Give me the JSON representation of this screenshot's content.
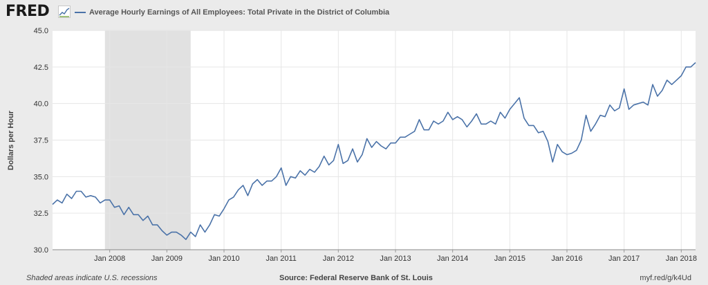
{
  "header": {
    "logo_text": "FRED",
    "legend_label": "Average Hourly Earnings of All Employees: Total Private in the District of Columbia"
  },
  "footer": {
    "left": "Shaded areas indicate U.S. recessions",
    "source": "Source: Federal Reserve Bank of St. Louis",
    "url": "myf.red/g/k4Ud"
  },
  "colors": {
    "line": "#4a72a8",
    "recession": "#e1e1e1",
    "plot_bg": "#ffffff",
    "grid": "#e6e6e6"
  },
  "chart_data": {
    "type": "line",
    "title": "",
    "ylabel": "Dollars per Hour",
    "xlabel": "",
    "ylim": [
      30.0,
      45.0
    ],
    "y_ticks": [
      "30.0",
      "32.5",
      "35.0",
      "37.5",
      "40.0",
      "42.5",
      "45.0"
    ],
    "x_ticks": [
      "Jan 2008",
      "Jan 2009",
      "Jan 2010",
      "Jan 2011",
      "Jan 2012",
      "Jan 2013",
      "Jan 2014",
      "Jan 2015",
      "Jan 2016",
      "Jan 2017",
      "Jan 2018"
    ],
    "x_start": "2007-01",
    "x_end": "2018-04",
    "recession": [
      "2007-12",
      "2009-06"
    ],
    "grid": true,
    "legend_position": "top",
    "series": [
      {
        "name": "Average Hourly Earnings of All Employees: Total Private in the District of Columbia",
        "color": "#4a72a8",
        "values": [
          33.1,
          33.4,
          33.2,
          33.8,
          33.5,
          34.0,
          34.0,
          33.6,
          33.7,
          33.6,
          33.2,
          33.4,
          33.4,
          32.9,
          33.0,
          32.4,
          32.9,
          32.4,
          32.4,
          32.0,
          32.3,
          31.7,
          31.7,
          31.3,
          31.0,
          31.2,
          31.2,
          31.0,
          30.7,
          31.2,
          30.9,
          31.7,
          31.2,
          31.7,
          32.4,
          32.3,
          32.8,
          33.4,
          33.6,
          34.1,
          34.4,
          33.7,
          34.5,
          34.8,
          34.4,
          34.7,
          34.7,
          35.0,
          35.6,
          34.4,
          35.0,
          34.9,
          35.4,
          35.1,
          35.5,
          35.3,
          35.7,
          36.4,
          35.8,
          36.1,
          37.2,
          35.9,
          36.1,
          36.9,
          36.0,
          36.5,
          37.6,
          37.0,
          37.4,
          37.1,
          36.9,
          37.3,
          37.3,
          37.7,
          37.7,
          37.9,
          38.1,
          38.9,
          38.2,
          38.2,
          38.8,
          38.6,
          38.8,
          39.4,
          38.9,
          39.1,
          38.9,
          38.4,
          38.8,
          39.3,
          38.6,
          38.6,
          38.8,
          38.6,
          39.4,
          39.0,
          39.6,
          40.0,
          40.4,
          39.0,
          38.5,
          38.5,
          38.0,
          38.1,
          37.4,
          36.0,
          37.2,
          36.7,
          36.5,
          36.6,
          36.8,
          37.5,
          39.2,
          38.1,
          38.6,
          39.2,
          39.1,
          39.9,
          39.5,
          39.7,
          41.0,
          39.6,
          39.9,
          40.0,
          40.1,
          39.9,
          41.3,
          40.5,
          40.9,
          41.6,
          41.3,
          41.6,
          41.9,
          42.5,
          42.5,
          42.8
        ]
      }
    ]
  }
}
